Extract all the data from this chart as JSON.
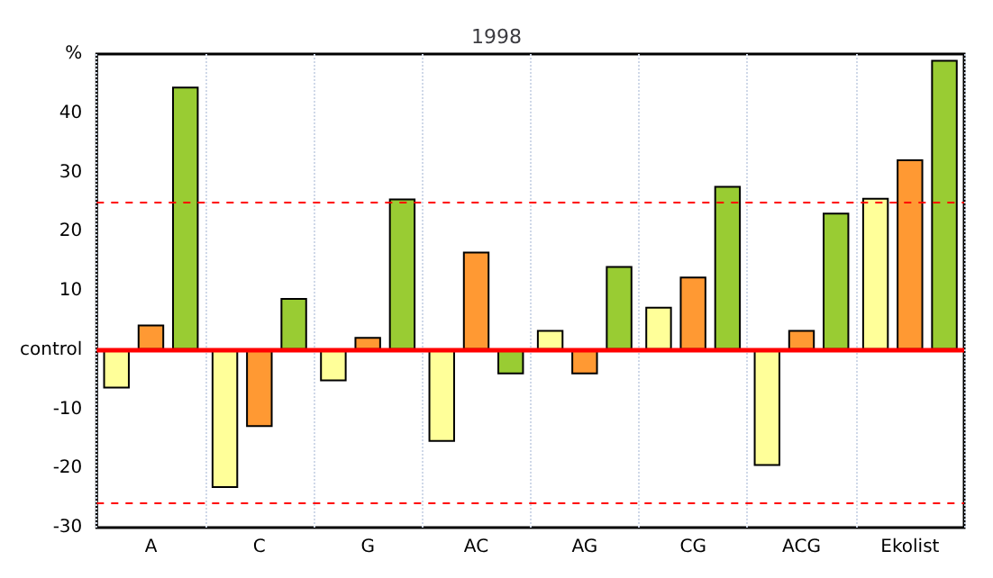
{
  "chart_data": {
    "type": "bar",
    "title": "1998",
    "categories": [
      "A",
      "C",
      "G",
      "AC",
      "AG",
      "CG",
      "ACG",
      "Ekolist"
    ],
    "series": [
      {
        "color": "#ffff99",
        "values": [
          -6.5,
          -23.3,
          -5.3,
          -15.5,
          3.4,
          7.3,
          -19.6,
          25.7
        ]
      },
      {
        "color": "#ff9933",
        "values": [
          4.3,
          -13,
          2.2,
          16.6,
          -4.1,
          12.4,
          3.4,
          32.2
        ]
      },
      {
        "color": "#99cc33",
        "values": [
          44.5,
          8.8,
          25.6,
          -4.1,
          14.2,
          27.7,
          23.2,
          49
        ]
      }
    ],
    "ylim": [
      -30,
      50
    ],
    "yticks": [
      -30,
      -20,
      -10,
      {
        "value": 0,
        "label": "control"
      },
      10,
      20,
      30,
      40,
      {
        "value": 50,
        "label": "%"
      }
    ],
    "ref_lines": [
      {
        "axis": "y",
        "value": 0,
        "color": "#ff0000",
        "line_style": "solid"
      },
      {
        "axis": "y",
        "value": 25,
        "color": "#ff0000",
        "line_style": "dashed"
      },
      {
        "axis": "y",
        "value": -25.7,
        "color": "#ff0000",
        "line_style": "dashed"
      }
    ],
    "grid": "x"
  }
}
